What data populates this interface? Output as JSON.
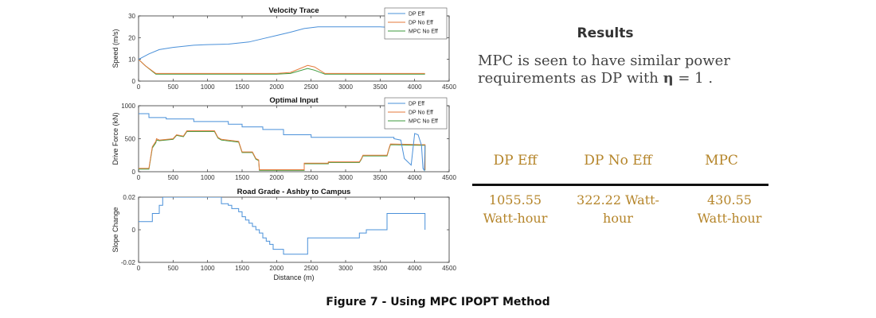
{
  "chart_data": [
    {
      "type": "line",
      "title": "Velocity Trace",
      "xlabel": "",
      "ylabel": "Speed (m/s)",
      "xlim": [
        0,
        4500
      ],
      "ylim": [
        0,
        30
      ],
      "xticks": [
        0,
        500,
        1000,
        1500,
        2000,
        2500,
        3000,
        3500,
        4000,
        4500
      ],
      "yticks": [
        0,
        10,
        20,
        30
      ],
      "legend": "top-right",
      "series": [
        {
          "name": "DP Eff",
          "color": "#4a90d9",
          "x": [
            0,
            150,
            300,
            500,
            800,
            1000,
            1300,
            1600,
            1800,
            2000,
            2200,
            2400,
            2600,
            3000,
            3500,
            3700,
            3900,
            4100,
            4150
          ],
          "y": [
            10,
            12.5,
            14.5,
            15.5,
            16.5,
            16.8,
            17,
            18,
            19.5,
            21,
            22.5,
            24.2,
            25,
            25,
            25,
            24.6,
            23,
            21,
            20.5
          ]
        },
        {
          "name": "DP No Eff",
          "color": "#e57a3a",
          "x": [
            0,
            100,
            250,
            2000,
            2200,
            2450,
            2550,
            2700,
            3000,
            3500,
            4000,
            4150
          ],
          "y": [
            10,
            7,
            3.5,
            3.5,
            4,
            7.2,
            6.5,
            3.5,
            3.5,
            3.5,
            3.5,
            3.5
          ]
        },
        {
          "name": "MPC No Eff",
          "color": "#3c9a3c",
          "x": [
            0,
            100,
            250,
            2000,
            2200,
            2450,
            2550,
            2700,
            3000,
            3500,
            4000,
            4150
          ],
          "y": [
            10,
            7,
            3.2,
            3.2,
            3.5,
            5.8,
            5,
            3.2,
            3.2,
            3.2,
            3.2,
            3.2
          ]
        }
      ]
    },
    {
      "type": "line",
      "title": "Optimal Input",
      "xlabel": "",
      "ylabel": "Drive Force (kN)",
      "xlim": [
        0,
        4500
      ],
      "ylim": [
        0,
        1000
      ],
      "xticks": [
        0,
        500,
        1000,
        1500,
        2000,
        2500,
        3000,
        3500,
        4000,
        4500
      ],
      "yticks": [
        0,
        500,
        1000
      ],
      "legend": "top-right",
      "series": [
        {
          "name": "DP Eff",
          "color": "#4a90d9",
          "x": [
            0,
            150,
            150,
            400,
            400,
            800,
            800,
            1300,
            1300,
            1500,
            1500,
            1800,
            1800,
            2100,
            2100,
            2500,
            2500,
            3700,
            3700,
            3800,
            3850,
            3950,
            4000,
            4050,
            4100,
            4120,
            4140,
            4150
          ],
          "y": [
            880,
            880,
            820,
            820,
            800,
            800,
            760,
            760,
            720,
            720,
            680,
            680,
            640,
            640,
            560,
            560,
            520,
            520,
            500,
            480,
            200,
            100,
            580,
            560,
            400,
            50,
            20,
            400
          ]
        },
        {
          "name": "DP No Eff",
          "color": "#e57a3a",
          "x": [
            0,
            150,
            200,
            250,
            260,
            300,
            500,
            550,
            650,
            700,
            1100,
            1150,
            1200,
            1450,
            1500,
            1650,
            1700,
            1740,
            1750,
            2400,
            2400,
            2750,
            2750,
            3200,
            3230,
            3250,
            3600,
            3630,
            3650,
            4100,
            4150,
            4150
          ],
          "y": [
            50,
            50,
            380,
            460,
            500,
            480,
            500,
            560,
            540,
            620,
            620,
            520,
            490,
            460,
            300,
            300,
            200,
            180,
            30,
            30,
            130,
            130,
            150,
            150,
            200,
            250,
            250,
            360,
            420,
            410,
            410,
            30
          ]
        },
        {
          "name": "MPC No Eff",
          "color": "#3c9a3c",
          "x": [
            0,
            150,
            200,
            250,
            260,
            300,
            500,
            550,
            650,
            700,
            1100,
            1150,
            1200,
            1450,
            1500,
            1650,
            1700,
            1740,
            1750,
            2400,
            2400,
            2750,
            2750,
            3200,
            3230,
            3250,
            3600,
            3630,
            3650,
            4100,
            4150,
            4150
          ],
          "y": [
            40,
            40,
            360,
            440,
            480,
            470,
            490,
            550,
            530,
            610,
            610,
            510,
            480,
            450,
            290,
            290,
            190,
            170,
            20,
            20,
            120,
            120,
            140,
            140,
            190,
            240,
            240,
            350,
            410,
            400,
            400,
            20
          ]
        }
      ]
    },
    {
      "type": "line",
      "title": "Road Grade - Ashby to Campus",
      "xlabel": "Distance (m)",
      "ylabel": "Slope Change",
      "xlim": [
        0,
        4500
      ],
      "ylim": [
        -0.02,
        0.02
      ],
      "xticks": [
        0,
        500,
        1000,
        1500,
        2000,
        2500,
        3000,
        3500,
        4000,
        4500
      ],
      "yticks": [
        -0.02,
        0,
        0.02
      ],
      "ytick_labels": [
        "-0.02",
        "0",
        "0.02"
      ],
      "series": [
        {
          "name": "",
          "color": "#4a90d9",
          "x": [
            0,
            200,
            200,
            300,
            300,
            350,
            350,
            1200,
            1200,
            1300,
            1300,
            1350,
            1350,
            1450,
            1450,
            1500,
            1500,
            1550,
            1550,
            1600,
            1600,
            1650,
            1650,
            1700,
            1700,
            1750,
            1750,
            1800,
            1800,
            1850,
            1850,
            1900,
            1900,
            1950,
            1950,
            2100,
            2100,
            2450,
            2450,
            3200,
            3200,
            3300,
            3300,
            3600,
            3600,
            4150,
            4150
          ],
          "y": [
            0.005,
            0.005,
            0.01,
            0.01,
            0.015,
            0.015,
            0.02,
            0.02,
            0.016,
            0.016,
            0.015,
            0.015,
            0.013,
            0.013,
            0.011,
            0.011,
            0.008,
            0.008,
            0.006,
            0.006,
            0.004,
            0.004,
            0.002,
            0.002,
            0,
            0,
            -0.002,
            -0.002,
            -0.005,
            -0.005,
            -0.007,
            -0.007,
            -0.009,
            -0.009,
            -0.012,
            -0.012,
            -0.015,
            -0.015,
            -0.005,
            -0.005,
            -0.002,
            -0.002,
            0,
            0,
            0.01,
            0.01,
            0
          ]
        }
      ]
    }
  ],
  "results": {
    "title": "Results",
    "text_line1": "MPC is seen to have similar power",
    "text_line2_prefix": "requirements as DP with ",
    "eta_symbol": "η",
    "text_line2_suffix": " = 1 .",
    "table": {
      "headers": [
        "DP Eff",
        "DP No Eff",
        "MPC"
      ],
      "cells": [
        [
          "1055.55",
          "Watt-hour"
        ],
        [
          "322.22 Watt-",
          "hour"
        ],
        [
          "430.55",
          "Watt-hour"
        ]
      ]
    }
  },
  "caption": "Figure 7 - Using MPC IPOPT Method"
}
